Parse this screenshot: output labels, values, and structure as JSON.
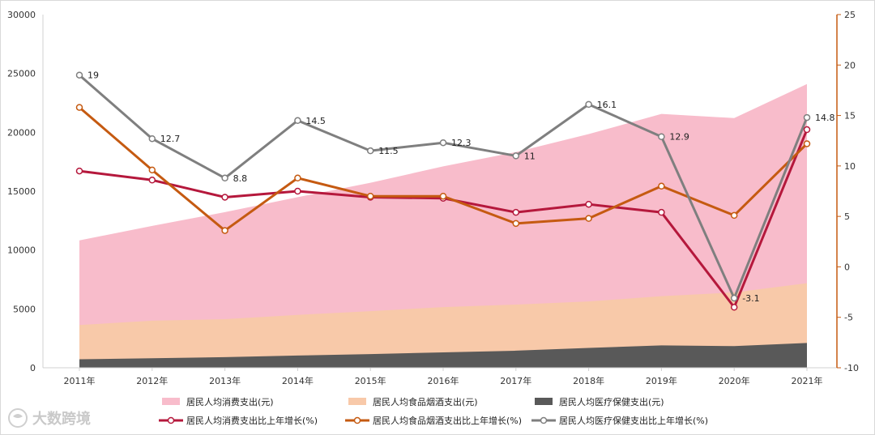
{
  "chart_data": {
    "type": "area",
    "title": "",
    "xlabel": "",
    "ylabel": "",
    "y2label": "",
    "categories": [
      "2011年",
      "2012年",
      "2013年",
      "2014年",
      "2015年",
      "2016年",
      "2017年",
      "2018年",
      "2019年",
      "2020年",
      "2021年"
    ],
    "ylim": [
      0,
      30000
    ],
    "yticks": [
      0,
      5000,
      10000,
      15000,
      20000,
      25000,
      30000
    ],
    "y2lim": [
      -10,
      25
    ],
    "y2ticks": [
      -10,
      -5,
      0,
      5,
      10,
      15,
      20,
      25
    ],
    "grid": false,
    "legend_position": "bottom",
    "series": [
      {
        "name": "居民人均消费支出(元)",
        "kind": "area",
        "axis": "left",
        "color": "#f8bccb",
        "values": [
          10820,
          12050,
          13220,
          14490,
          15710,
          17110,
          18320,
          19850,
          21560,
          21210,
          24100
        ]
      },
      {
        "name": "居民人均食品烟酒支出(元)",
        "kind": "area",
        "axis": "left",
        "color": "#f8c9a9",
        "values": [
          3630,
          4000,
          4130,
          4490,
          4810,
          5150,
          5370,
          5630,
          6080,
          6400,
          7180
        ]
      },
      {
        "name": "居民人均医疗保健支出(元)",
        "kind": "area",
        "axis": "left",
        "color": "#595959",
        "values": [
          720,
          810,
          900,
          1040,
          1160,
          1310,
          1450,
          1690,
          1900,
          1840,
          2110
        ]
      },
      {
        "name": "居民人均消费支出比上年增长(%)",
        "kind": "line",
        "axis": "right",
        "color": "#b5183c",
        "values": [
          9.5,
          8.6,
          6.9,
          7.5,
          6.9,
          6.8,
          5.4,
          6.2,
          5.4,
          -4.0,
          13.6
        ]
      },
      {
        "name": "居民人均食品烟酒支出比上年增长(%)",
        "kind": "line",
        "axis": "right",
        "color": "#c55a11",
        "values": [
          15.8,
          9.6,
          3.6,
          8.8,
          7.0,
          7.0,
          4.3,
          4.8,
          8.0,
          5.1,
          12.2
        ]
      },
      {
        "name": "居民人均医疗保健支出比上年增长(%)",
        "kind": "line",
        "axis": "right",
        "color": "#7f7f7f",
        "values": [
          19.0,
          12.7,
          8.8,
          14.5,
          11.5,
          12.3,
          11.0,
          16.1,
          12.9,
          -3.1,
          14.8
        ],
        "data_labels": [
          "19",
          "12.7",
          "8.8",
          "14.5",
          "11.5",
          "12.3",
          "11",
          "16.1",
          "12.9",
          "-3.1",
          "14.8"
        ]
      }
    ]
  },
  "watermark": {
    "text": "大数跨境",
    "icon": "bird-logo-icon"
  }
}
